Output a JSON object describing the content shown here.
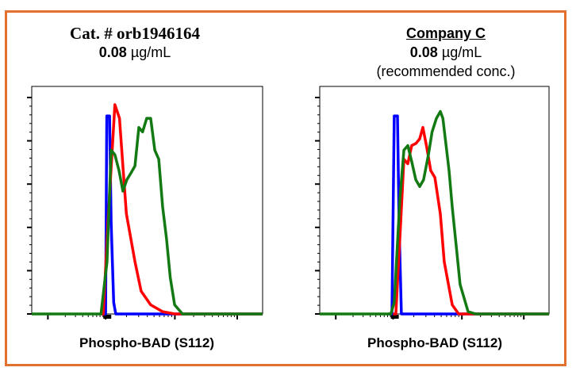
{
  "colors": {
    "border": "#e2702f",
    "blue": "#0000ff",
    "red": "#ff0000",
    "green": "#137a13"
  },
  "chart_data": [
    {
      "type": "line",
      "title": "Cat. # orb1946164",
      "subtitle_value": "0.08",
      "subtitle_unit": "µg/mL",
      "xlabel": "Phospho-BAD (S112)",
      "ylabel": "",
      "xlim": [
        0,
        100
      ],
      "ylim": [
        0,
        100
      ],
      "grid": false,
      "series": [
        {
          "color": "blue",
          "x": [
            30,
            32,
            32.5,
            33.7,
            34.4,
            35.5,
            36.4,
            100
          ],
          "y": [
            0,
            0,
            87,
            87,
            40,
            5,
            0,
            0
          ]
        },
        {
          "color": "red",
          "x": [
            30,
            31,
            33,
            36,
            38,
            39.5,
            41,
            44.7,
            47.4,
            51.5,
            56.7,
            62,
            100
          ],
          "y": [
            0,
            0,
            40,
            92,
            86,
            65,
            44,
            23,
            10,
            4,
            1,
            0,
            0
          ]
        },
        {
          "color": "green",
          "x": [
            0,
            30,
            32.6,
            34.4,
            36,
            37.8,
            39.5,
            41.2,
            43,
            44.7,
            46.4,
            48,
            49.8,
            51.5,
            53.3,
            55,
            56.7,
            58.4,
            60,
            61.9,
            65.3,
            100
          ],
          "y": [
            0,
            0,
            23,
            72,
            70,
            63,
            54,
            59,
            62,
            65,
            82,
            80,
            86,
            86,
            72,
            68,
            47,
            33,
            16,
            4,
            0,
            0
          ]
        }
      ]
    },
    {
      "type": "line",
      "title": "Company C",
      "subtitle_value": "0.08",
      "subtitle_unit": "µg/mL",
      "note": "(recommended conc.)",
      "xlabel": "Phospho-BAD (S112)",
      "ylabel": "",
      "xlim": [
        0,
        100
      ],
      "ylim": [
        0,
        100
      ],
      "grid": false,
      "series": [
        {
          "color": "blue",
          "x": [
            30,
            31.5,
            32.5,
            33.9,
            34.6,
            35.6,
            100
          ],
          "y": [
            0,
            0,
            87,
            87,
            40,
            0,
            0
          ]
        },
        {
          "color": "red",
          "x": [
            32,
            33.2,
            35,
            36.7,
            38.4,
            40.1,
            42,
            43.6,
            45,
            46.7,
            48.4,
            50.2,
            52.6,
            54.3,
            57.8,
            60.6,
            100
          ],
          "y": [
            0,
            0,
            34,
            68,
            66,
            74,
            75,
            77,
            82,
            73,
            63,
            60,
            44,
            23,
            4,
            0,
            0
          ]
        },
        {
          "color": "green",
          "x": [
            0,
            31,
            32.5,
            35,
            36.7,
            38.4,
            40.1,
            41.9,
            43.6,
            45.3,
            47.4,
            49,
            50.9,
            52.6,
            53.7,
            56.4,
            57.8,
            59.5,
            61.2,
            64.7,
            68,
            100
          ],
          "y": [
            0,
            0,
            5,
            51,
            72,
            74,
            67,
            59,
            56,
            59,
            70,
            80,
            86,
            89,
            86,
            63,
            47,
            30,
            13,
            1,
            0,
            0
          ]
        }
      ]
    }
  ]
}
